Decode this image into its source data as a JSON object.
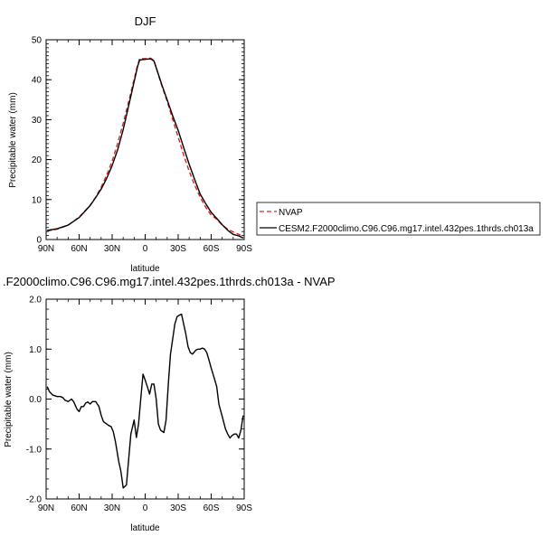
{
  "chart_data": [
    {
      "type": "line",
      "title": "DJF",
      "xlabel": "latitude",
      "ylabel": "Precipitable water (mm)",
      "xlim": [
        -90,
        90
      ],
      "ylim": [
        0,
        50
      ],
      "x_ticks": [
        {
          "value": -90,
          "label": "90N"
        },
        {
          "value": -60,
          "label": "60N"
        },
        {
          "value": -30,
          "label": "30N"
        },
        {
          "value": 0,
          "label": "0"
        },
        {
          "value": 30,
          "label": "30S"
        },
        {
          "value": 60,
          "label": "60S"
        },
        {
          "value": 90,
          "label": "90S"
        }
      ],
      "y_ticks": [
        {
          "value": 0,
          "label": "0"
        },
        {
          "value": 10,
          "label": "10"
        },
        {
          "value": 20,
          "label": "20"
        },
        {
          "value": 30,
          "label": "30"
        },
        {
          "value": 40,
          "label": "40"
        },
        {
          "value": 50,
          "label": "50"
        }
      ],
      "legend_position": "right",
      "series": [
        {
          "name": "NVAP",
          "color": "#e02020",
          "dash": "dashed",
          "x": [
            -89,
            -80,
            -70,
            -60,
            -55,
            -50,
            -45,
            -40,
            -35,
            -30,
            -25,
            -20,
            -15,
            -10,
            -7,
            -5,
            -3,
            0,
            3,
            5,
            8,
            10,
            15,
            20,
            25,
            30,
            35,
            40,
            45,
            50,
            55,
            60,
            65,
            70,
            75,
            80,
            85,
            89
          ],
          "y": [
            2.1,
            2.6,
            3.6,
            5.6,
            7.1,
            8.6,
            10.6,
            13.1,
            16.1,
            19.6,
            24.1,
            29.1,
            34.6,
            40.1,
            43.6,
            45.3,
            45.3,
            45.3,
            45.3,
            45.4,
            44.8,
            43.0,
            38.6,
            34.6,
            30.1,
            25.6,
            21.1,
            17.1,
            13.6,
            10.6,
            8.1,
            6.1,
            5.1,
            3.6,
            2.6,
            1.9,
            1.3,
            0.7
          ]
        },
        {
          "name": "CESM2.F2000climo.C96.C96.mg17.intel.432pes.1thrds.ch013a",
          "color": "#000000",
          "dash": "solid",
          "x": [
            -89,
            -80,
            -70,
            -60,
            -55,
            -50,
            -45,
            -40,
            -35,
            -30,
            -25,
            -20,
            -15,
            -10,
            -7,
            -5,
            -3,
            0,
            3,
            5,
            8,
            10,
            15,
            20,
            25,
            30,
            35,
            40,
            45,
            50,
            55,
            60,
            65,
            70,
            75,
            80,
            85,
            89
          ],
          "y": [
            2.3,
            2.7,
            3.6,
            5.5,
            7.0,
            8.5,
            10.5,
            12.6,
            15.3,
            18.5,
            22.5,
            27.5,
            33.5,
            39.5,
            43.2,
            44.9,
            45.0,
            45.1,
            45.2,
            45.2,
            44.7,
            43.0,
            38.8,
            35.0,
            31.0,
            27.3,
            23.0,
            18.8,
            15.0,
            11.4,
            9.0,
            6.8,
            5.3,
            3.7,
            2.3,
            1.3,
            0.9,
            0.4
          ]
        }
      ]
    },
    {
      "type": "line",
      "title": ".F2000climo.C96.C96.mg17.intel.432pes.1thrds.ch013a - NVAP",
      "xlabel": "latitude",
      "ylabel": "Precipitable water (mm)",
      "xlim": [
        -90,
        90
      ],
      "ylim": [
        -2.0,
        2.0
      ],
      "x_ticks": [
        {
          "value": -90,
          "label": "90N"
        },
        {
          "value": -60,
          "label": "60N"
        },
        {
          "value": -30,
          "label": "30N"
        },
        {
          "value": 0,
          "label": "0"
        },
        {
          "value": 30,
          "label": "30S"
        },
        {
          "value": 60,
          "label": "60S"
        },
        {
          "value": 90,
          "label": "90S"
        }
      ],
      "y_ticks": [
        {
          "value": -2.0,
          "label": "-2.0"
        },
        {
          "value": -1.0,
          "label": "-1.0"
        },
        {
          "value": 0.0,
          "label": "0.0"
        },
        {
          "value": 1.0,
          "label": "1.0"
        },
        {
          "value": 2.0,
          "label": "2.0"
        }
      ],
      "series": [
        {
          "color": "#000000",
          "dash": "solid",
          "x": [
            -89,
            -87,
            -84,
            -80,
            -77,
            -75,
            -73,
            -70,
            -67,
            -65,
            -62,
            -60,
            -58,
            -56,
            -54,
            -52,
            -50,
            -48,
            -45,
            -42,
            -40,
            -38,
            -35,
            -33,
            -31,
            -29,
            -27,
            -24,
            -22,
            -20,
            -17,
            -15,
            -13,
            -10,
            -8,
            -6,
            -4,
            -2,
            0,
            2,
            4,
            6,
            8,
            10,
            12,
            14,
            17,
            19,
            21,
            23,
            25,
            27,
            29,
            31,
            33,
            35,
            37,
            39,
            41,
            43,
            46,
            48,
            50,
            52,
            54,
            56,
            58,
            60,
            63,
            65,
            67,
            70,
            73,
            75,
            77,
            79,
            81,
            83,
            85,
            87,
            89
          ],
          "y": [
            0.25,
            0.15,
            0.08,
            0.05,
            0.05,
            0.03,
            -0.02,
            -0.05,
            0.0,
            -0.05,
            -0.2,
            -0.25,
            -0.15,
            -0.15,
            -0.08,
            -0.06,
            -0.1,
            -0.05,
            -0.05,
            -0.15,
            -0.32,
            -0.45,
            -0.5,
            -0.53,
            -0.55,
            -0.65,
            -0.85,
            -1.25,
            -1.45,
            -1.78,
            -1.72,
            -1.2,
            -0.7,
            -0.42,
            -0.77,
            -0.5,
            0.0,
            0.5,
            0.38,
            0.25,
            0.1,
            0.3,
            0.3,
            0.0,
            -0.5,
            -0.62,
            -0.67,
            -0.42,
            0.3,
            0.9,
            1.2,
            1.5,
            1.65,
            1.68,
            1.7,
            1.5,
            1.3,
            1.05,
            0.93,
            0.9,
            0.98,
            1.0,
            1.0,
            1.02,
            1.0,
            0.93,
            0.78,
            0.62,
            0.4,
            0.25,
            -0.1,
            -0.35,
            -0.6,
            -0.7,
            -0.78,
            -0.73,
            -0.7,
            -0.7,
            -0.78,
            -0.62,
            -0.33
          ]
        }
      ]
    }
  ]
}
